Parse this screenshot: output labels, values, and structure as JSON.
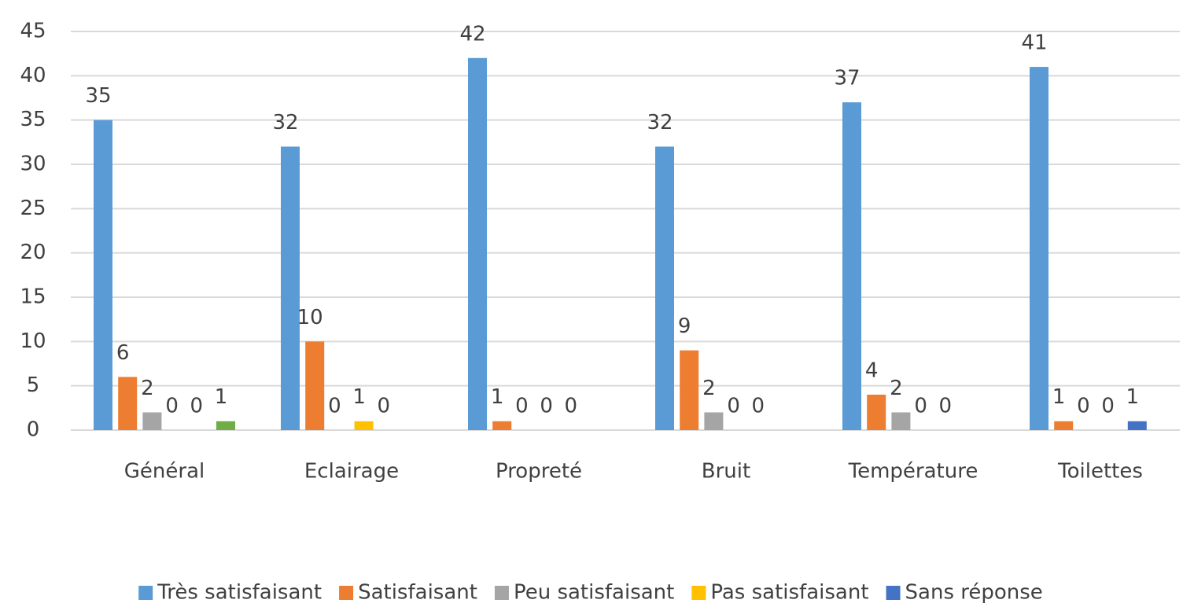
{
  "chart_data": {
    "type": "bar",
    "categories": [
      "Général",
      "Eclairage",
      "Propreté",
      "Bruit",
      "Température",
      "Toilettes"
    ],
    "series": [
      {
        "name": "Très satisfaisant",
        "color": "#5b9bd5",
        "values": [
          35,
          32,
          42,
          32,
          37,
          41
        ]
      },
      {
        "name": "Satisfaisant",
        "color": "#ed7d31",
        "values": [
          6,
          10,
          1,
          9,
          4,
          1
        ]
      },
      {
        "name": "Peu satisfaisant",
        "color": "#a5a5a5",
        "values": [
          2,
          0,
          0,
          2,
          2,
          0
        ]
      },
      {
        "name": "Pas satisfaisant",
        "color": "#ffc000",
        "values": [
          0,
          1,
          0,
          0,
          0,
          0
        ]
      },
      {
        "name": "Sans réponse",
        "color": "#4472c4",
        "values": [
          0,
          0,
          0,
          0,
          0,
          1
        ]
      },
      {
        "name": null,
        "color": "#70ad47",
        "values": [
          1,
          null,
          null,
          null,
          null,
          null
        ]
      }
    ],
    "ylim": [
      0,
      45
    ],
    "yticks": [
      0,
      5,
      10,
      15,
      20,
      25,
      30,
      35,
      40,
      45
    ],
    "grid": true,
    "legend": "bottom"
  }
}
